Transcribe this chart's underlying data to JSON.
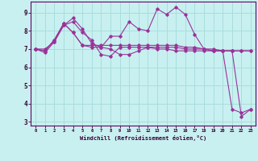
{
  "xlabel": "Windchill (Refroidissement éolien,°C)",
  "bg_color": "#c8f0f0",
  "grid_color": "#aadddd",
  "line_color": "#993399",
  "xlim": [
    -0.5,
    23.5
  ],
  "ylim": [
    2.8,
    9.6
  ],
  "yticks": [
    3,
    4,
    5,
    6,
    7,
    8,
    9
  ],
  "xticks": [
    0,
    1,
    2,
    3,
    4,
    5,
    6,
    7,
    8,
    9,
    10,
    11,
    12,
    13,
    14,
    15,
    16,
    17,
    18,
    19,
    20,
    21,
    22,
    23
  ],
  "series": [
    [
      7.0,
      6.8,
      7.4,
      8.3,
      8.5,
      7.9,
      7.5,
      6.7,
      6.6,
      7.1,
      7.1,
      7.1,
      7.1,
      7.0,
      7.0,
      6.9,
      6.9,
      6.9,
      6.9,
      6.9,
      6.9,
      3.7,
      3.5,
      3.7
    ],
    [
      7.0,
      7.0,
      7.4,
      8.3,
      8.7,
      8.1,
      7.3,
      7.1,
      7.7,
      7.7,
      8.5,
      8.1,
      8.0,
      9.2,
      8.9,
      9.3,
      8.9,
      7.8,
      7.0,
      6.9,
      6.9,
      6.9,
      3.3,
      3.7
    ],
    [
      7.0,
      6.9,
      7.5,
      8.4,
      7.9,
      7.2,
      7.2,
      7.2,
      7.2,
      7.2,
      7.2,
      7.2,
      7.2,
      7.2,
      7.2,
      7.2,
      7.1,
      7.1,
      7.0,
      6.9,
      6.9,
      6.9,
      6.9,
      6.9
    ],
    [
      7.0,
      6.9,
      7.5,
      8.4,
      7.9,
      7.2,
      7.1,
      7.1,
      7.0,
      6.7,
      6.7,
      6.9,
      7.1,
      7.1,
      7.1,
      7.1,
      7.0,
      7.0,
      7.0,
      7.0,
      6.9,
      6.9,
      6.9,
      6.9
    ]
  ]
}
